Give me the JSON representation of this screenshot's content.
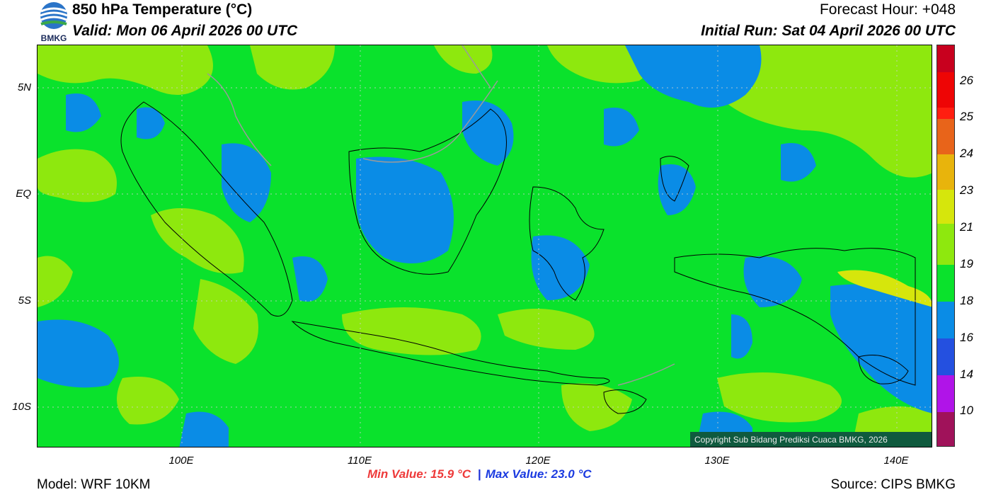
{
  "header": {
    "logo_text": "BMKG",
    "title": "850 hPa Temperature (°C)",
    "valid": "Valid: Mon 06 April 2026 00 UTC",
    "forecast_hour": "Forecast Hour: +048",
    "initial_run": "Initial Run: Sat 04 April 2026 00 UTC"
  },
  "map": {
    "lat_labels": [
      "5N",
      "EQ",
      "5S",
      "10S"
    ],
    "lon_labels": [
      "100E",
      "110E",
      "120E",
      "130E",
      "140E"
    ],
    "copyright": "Copyright Sub Bidang Prediksi Cuaca BMKG, 2026",
    "colors": {
      "background_green": "#0ae22c",
      "yellowgreen": "#8ee80e",
      "blue": "#0a8ce6",
      "land_border": "#000000",
      "country_border": "#9a9a9a"
    }
  },
  "colorbar": {
    "labels": [
      "26",
      "25",
      "24",
      "23",
      "21",
      "19",
      "18",
      "16",
      "14",
      "10"
    ],
    "colors": [
      "#c8001e",
      "#ee0505",
      "#ff1e10",
      "#e8641a",
      "#e8b40c",
      "#d6e60c",
      "#8ee80e",
      "#0ae22c",
      "#0a8ce6",
      "#2450e0",
      "#b014e8",
      "#a0125a"
    ]
  },
  "footer": {
    "min_value": "Min Value: 15.9 °C",
    "separator": "|",
    "max_value": "Max Value: 23.0 °C",
    "model": "Model: WRF 10KM",
    "source": "Source: CIPS BMKG"
  }
}
